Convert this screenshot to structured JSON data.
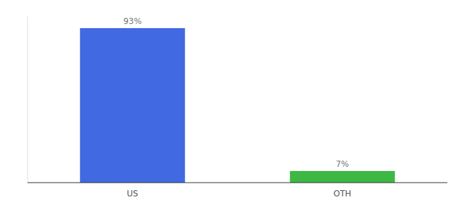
{
  "chart_data": {
    "type": "bar",
    "categories": [
      "US",
      "OTH"
    ],
    "values": [
      93,
      7
    ],
    "value_labels": [
      "93%",
      "7%"
    ],
    "colors": [
      "#4169e1",
      "#3cb843"
    ],
    "ylim": [
      0,
      100
    ],
    "data_labels": true,
    "tick_labels": "x",
    "grid": false
  }
}
